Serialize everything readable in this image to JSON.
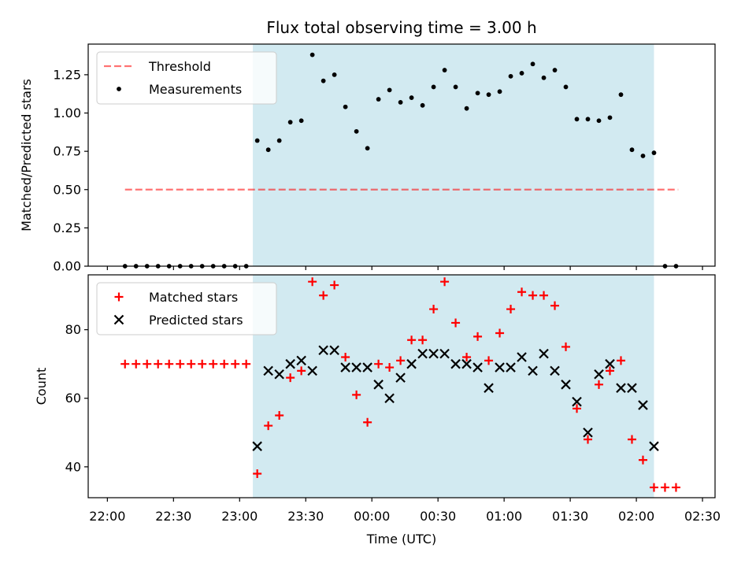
{
  "title": "Flux total observing time = 3.00 h",
  "colors": {
    "shade": "#add8e6",
    "threshold": "#ff0000",
    "measurement": "#000000",
    "matched": "#ff0000",
    "predicted": "#000000"
  },
  "chart_data": [
    {
      "type": "scatter",
      "ylabel": "Matched/Predicted stars",
      "xlim": [
        "22:00",
        "02:30"
      ],
      "ylim": [
        0,
        1.45
      ],
      "yticks": [
        "0.00",
        "0.25",
        "0.50",
        "0.75",
        "1.00",
        "1.25"
      ],
      "grid": false,
      "legend_position": "top-left",
      "shaded_region": {
        "x": [
          "23:06",
          "02:08"
        ]
      },
      "threshold": {
        "name": "Threshold",
        "x": [
          "22:08",
          "02:19"
        ],
        "y": 0.5
      },
      "series": [
        {
          "name": "Measurements",
          "marker": "dot",
          "x": [
            "22:08",
            "22:13",
            "22:18",
            "22:23",
            "22:28",
            "22:33",
            "22:38",
            "22:43",
            "22:48",
            "22:53",
            "22:58",
            "23:03",
            "23:08",
            "23:13",
            "23:18",
            "23:23",
            "23:28",
            "23:33",
            "23:38",
            "23:43",
            "23:48",
            "23:53",
            "23:58",
            "00:03",
            "00:08",
            "00:13",
            "00:18",
            "00:23",
            "00:28",
            "00:33",
            "00:38",
            "00:43",
            "00:48",
            "00:53",
            "00:58",
            "01:03",
            "01:08",
            "01:13",
            "01:18",
            "01:23",
            "01:28",
            "01:33",
            "01:38",
            "01:43",
            "01:48",
            "01:53",
            "01:58",
            "02:03",
            "02:08",
            "02:13",
            "02:18"
          ],
          "y": [
            0,
            0,
            0,
            0,
            0,
            0,
            0,
            0,
            0,
            0,
            0,
            0,
            0.82,
            0.76,
            0.82,
            0.94,
            0.95,
            1.38,
            1.21,
            1.25,
            1.04,
            0.88,
            0.77,
            1.09,
            1.15,
            1.07,
            1.1,
            1.05,
            1.17,
            1.28,
            1.17,
            1.03,
            1.13,
            1.12,
            1.14,
            1.24,
            1.26,
            1.32,
            1.23,
            1.28,
            1.17,
            0.96,
            0.96,
            0.95,
            0.97,
            1.12,
            0.76,
            0.72,
            0.74,
            0,
            0
          ]
        }
      ]
    },
    {
      "type": "scatter",
      "xlabel": "Time (UTC)",
      "ylabel": "Count",
      "xlim": [
        "22:00",
        "02:30"
      ],
      "ylim": [
        31,
        96
      ],
      "yticks": [
        "40",
        "60",
        "80"
      ],
      "xticks": [
        "22:00",
        "22:30",
        "23:00",
        "23:30",
        "00:00",
        "00:30",
        "01:00",
        "01:30",
        "02:00",
        "02:30"
      ],
      "grid": false,
      "legend_position": "top-left",
      "shaded_region": {
        "x": [
          "23:06",
          "02:08"
        ]
      },
      "series": [
        {
          "name": "Matched stars",
          "marker": "plus",
          "x": [
            "22:08",
            "22:13",
            "22:18",
            "22:23",
            "22:28",
            "22:33",
            "22:38",
            "22:43",
            "22:48",
            "22:53",
            "22:58",
            "23:03",
            "23:08",
            "23:13",
            "23:18",
            "23:23",
            "23:28",
            "23:33",
            "23:38",
            "23:43",
            "23:48",
            "23:53",
            "23:58",
            "00:03",
            "00:08",
            "00:13",
            "00:18",
            "00:23",
            "00:28",
            "00:33",
            "00:38",
            "00:43",
            "00:48",
            "00:53",
            "00:58",
            "01:03",
            "01:08",
            "01:13",
            "01:18",
            "01:23",
            "01:28",
            "01:33",
            "01:38",
            "01:43",
            "01:48",
            "01:53",
            "01:58",
            "02:03",
            "02:08",
            "02:13",
            "02:18"
          ],
          "y": [
            70,
            70,
            70,
            70,
            70,
            70,
            70,
            70,
            70,
            70,
            70,
            70,
            38,
            52,
            55,
            66,
            68,
            94,
            90,
            93,
            72,
            61,
            53,
            70,
            69,
            71,
            77,
            77,
            86,
            94,
            82,
            72,
            78,
            71,
            79,
            86,
            91,
            90,
            90,
            87,
            75,
            57,
            48,
            64,
            68,
            71,
            48,
            42,
            34,
            34,
            34
          ]
        },
        {
          "name": "Predicted stars",
          "marker": "x",
          "x": [
            "23:08",
            "23:13",
            "23:18",
            "23:23",
            "23:28",
            "23:33",
            "23:38",
            "23:43",
            "23:48",
            "23:53",
            "23:58",
            "00:03",
            "00:08",
            "00:13",
            "00:18",
            "00:23",
            "00:28",
            "00:33",
            "00:38",
            "00:43",
            "00:48",
            "00:53",
            "00:58",
            "01:03",
            "01:08",
            "01:13",
            "01:18",
            "01:23",
            "01:28",
            "01:33",
            "01:38",
            "01:43",
            "01:48",
            "01:53",
            "01:58",
            "02:03",
            "02:08"
          ],
          "y": [
            46,
            68,
            67,
            70,
            71,
            68,
            74,
            74,
            69,
            69,
            69,
            64,
            60,
            66,
            70,
            73,
            73,
            73,
            70,
            70,
            69,
            63,
            69,
            69,
            72,
            68,
            73,
            68,
            64,
            59,
            50,
            67,
            70,
            63,
            63,
            58,
            46
          ]
        }
      ]
    }
  ]
}
